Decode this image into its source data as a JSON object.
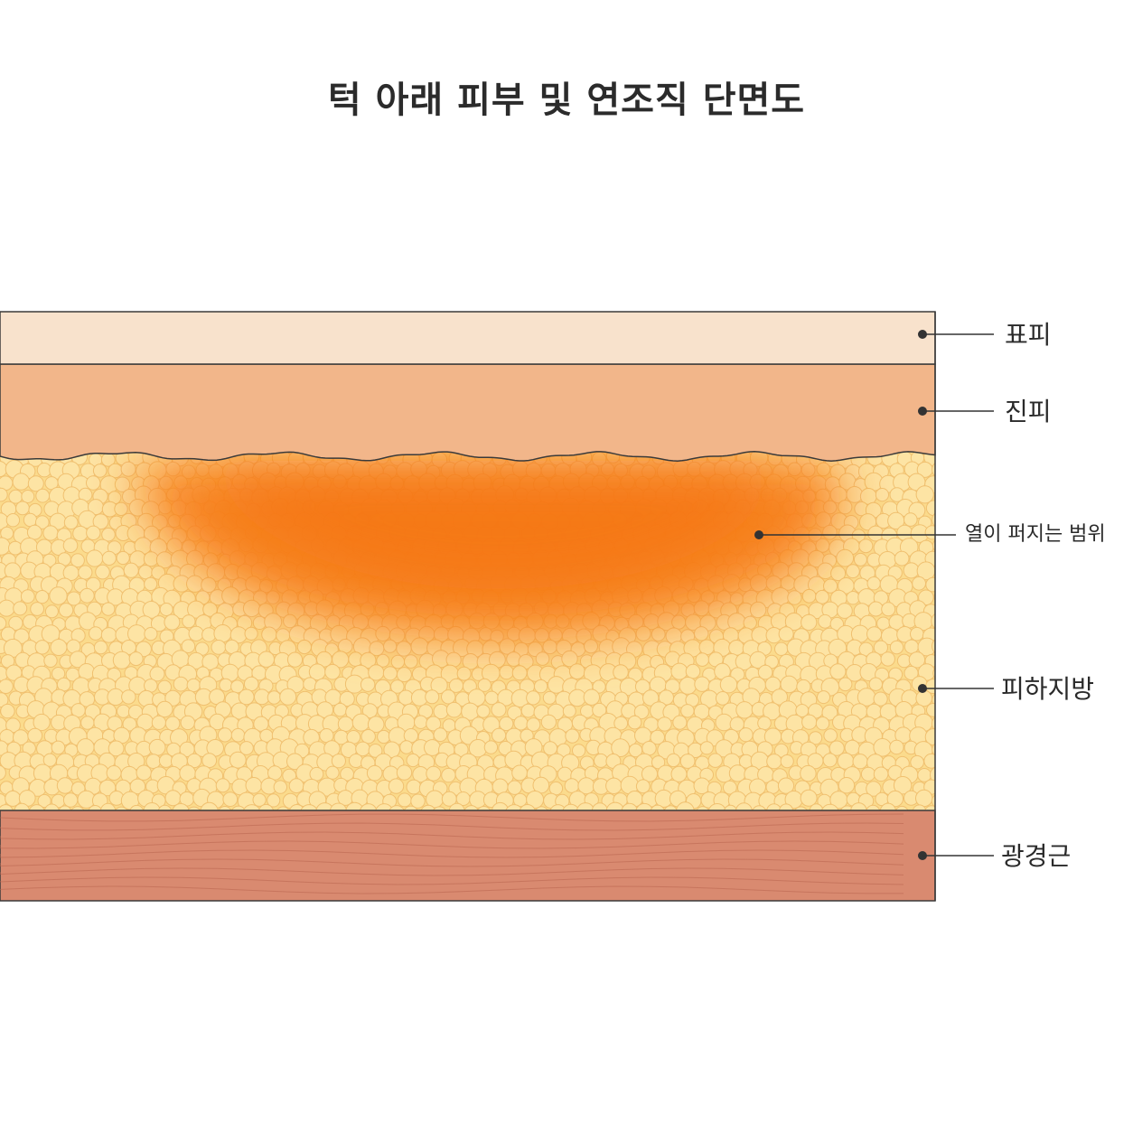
{
  "title": "턱 아래 피부 및 연조직 단면도",
  "layers": {
    "epidermis": {
      "label": "표피",
      "color": "#f8e2cc"
    },
    "dermis": {
      "label": "진피",
      "color": "#f2b68a"
    },
    "subcutaneous_fat": {
      "label": "피하지방",
      "color": "#fbdb8c"
    },
    "platysma": {
      "label": "광경근",
      "color": "#d98a70"
    }
  },
  "heat_zone": {
    "label": "열이 퍼지는 범위",
    "color": "#f7801e"
  },
  "colors": {
    "outline": "#3a3a3a",
    "fat_cell_stroke": "#f0c070",
    "muscle_fiber": "#b8644e"
  }
}
